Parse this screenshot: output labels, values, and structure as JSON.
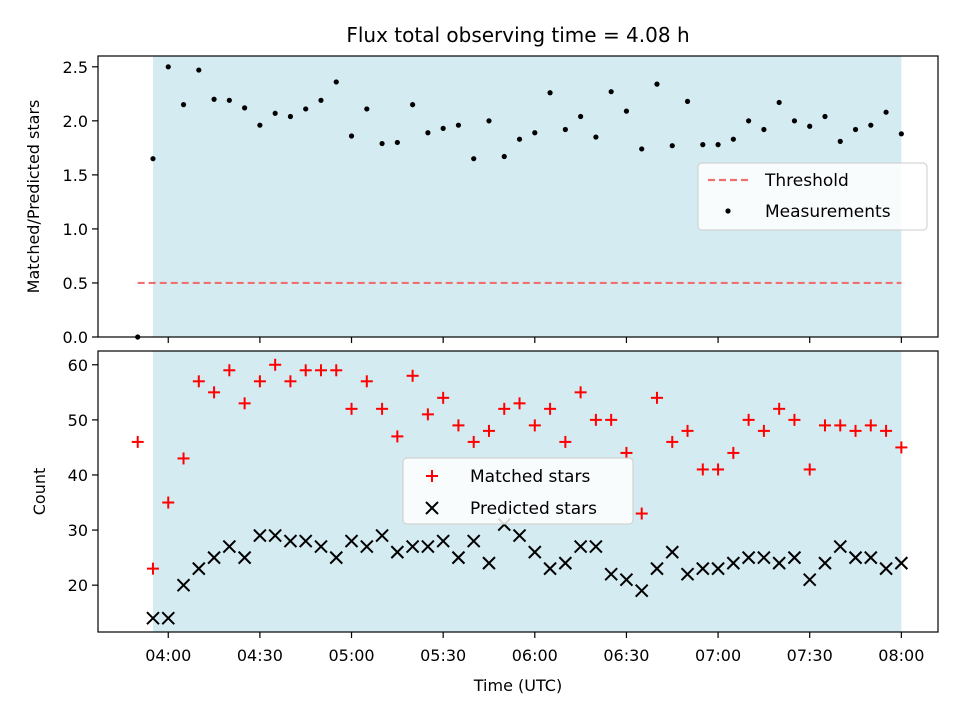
{
  "chart_data": {
    "title": "Flux total observing time = 4.08 h",
    "xlabel": "Time (UTC)",
    "x_ticks": [
      "04:00",
      "04:30",
      "05:00",
      "05:30",
      "06:00",
      "06:30",
      "07:00",
      "07:30",
      "08:00"
    ],
    "x_tick_minutes": [
      240,
      270,
      300,
      330,
      360,
      390,
      420,
      450,
      480
    ],
    "xlim": [
      "03:37",
      "08:12"
    ],
    "shaded_span": [
      "03:55",
      "08:00"
    ],
    "shade_color": "#d4ebf1",
    "panels": [
      {
        "type": "scatter",
        "ylabel": "Matched/Predicted stars",
        "ylim": [
          0,
          2.6
        ],
        "y_ticks": [
          "0.0",
          "0.5",
          "1.0",
          "1.5",
          "2.0",
          "2.5"
        ],
        "y_tick_values": [
          0,
          0.5,
          1.0,
          1.5,
          2.0,
          2.5
        ],
        "legend": "right",
        "threshold": {
          "name": "Threshold",
          "value": 0.5,
          "x_range": [
            "03:50",
            "08:00"
          ],
          "color": "#f07070"
        },
        "series": [
          {
            "name": "Measurements",
            "color": "#000000",
            "marker": "dot",
            "x": [
              "03:50",
              "03:55",
              "04:00",
              "04:05",
              "04:10",
              "04:15",
              "04:20",
              "04:25",
              "04:30",
              "04:35",
              "04:40",
              "04:45",
              "04:50",
              "04:55",
              "05:00",
              "05:05",
              "05:10",
              "05:15",
              "05:20",
              "05:25",
              "05:30",
              "05:35",
              "05:40",
              "05:45",
              "05:50",
              "05:55",
              "06:00",
              "06:05",
              "06:10",
              "06:15",
              "06:20",
              "06:25",
              "06:30",
              "06:35",
              "06:40",
              "06:45",
              "06:50",
              "06:55",
              "07:00",
              "07:05",
              "07:10",
              "07:15",
              "07:20",
              "07:25",
              "07:30",
              "07:35",
              "07:40",
              "07:45",
              "07:50",
              "07:55",
              "08:00"
            ],
            "values": [
              0.0,
              1.65,
              2.5,
              2.15,
              2.47,
              2.2,
              2.19,
              2.12,
              1.96,
              2.07,
              2.04,
              2.11,
              2.19,
              2.36,
              1.86,
              2.11,
              1.79,
              1.8,
              2.15,
              1.89,
              1.93,
              1.96,
              1.65,
              2.0,
              1.67,
              1.83,
              1.89,
              2.26,
              1.92,
              2.04,
              1.85,
              2.27,
              2.09,
              1.74,
              2.34,
              1.77,
              2.18,
              1.78,
              1.78,
              1.83,
              2.0,
              1.92,
              2.17,
              2.0,
              1.95,
              2.04,
              1.81,
              1.92,
              1.96,
              2.08,
              1.88
            ]
          }
        ]
      },
      {
        "type": "scatter",
        "ylabel": "Count",
        "ylim": [
          11.5,
          62.5
        ],
        "y_ticks": [
          "20",
          "30",
          "40",
          "50",
          "60"
        ],
        "y_tick_values": [
          20,
          30,
          40,
          50,
          60
        ],
        "legend": "center",
        "series": [
          {
            "name": "Matched stars",
            "color": "#ff0000",
            "marker": "plus",
            "x": [
              "03:50",
              "03:55",
              "04:00",
              "04:05",
              "04:10",
              "04:15",
              "04:20",
              "04:25",
              "04:30",
              "04:35",
              "04:40",
              "04:45",
              "04:50",
              "04:55",
              "05:00",
              "05:05",
              "05:10",
              "05:15",
              "05:20",
              "05:25",
              "05:30",
              "05:35",
              "05:40",
              "05:45",
              "05:50",
              "05:55",
              "06:00",
              "06:05",
              "06:10",
              "06:15",
              "06:20",
              "06:25",
              "06:30",
              "06:35",
              "06:40",
              "06:45",
              "06:50",
              "06:55",
              "07:00",
              "07:05",
              "07:10",
              "07:15",
              "07:20",
              "07:25",
              "07:30",
              "07:35",
              "07:40",
              "07:45",
              "07:50",
              "07:55",
              "08:00"
            ],
            "values": [
              46,
              23,
              35,
              43,
              57,
              55,
              59,
              53,
              57,
              60,
              57,
              59,
              59,
              59,
              52,
              57,
              52,
              47,
              58,
              51,
              54,
              49,
              46,
              48,
              52,
              53,
              49,
              52,
              46,
              55,
              50,
              50,
              44,
              33,
              54,
              46,
              48,
              41,
              41,
              44,
              50,
              48,
              52,
              50,
              41,
              49,
              49,
              48,
              49,
              48,
              45
            ]
          },
          {
            "name": "Predicted stars",
            "color": "#000000",
            "marker": "x",
            "x": [
              "03:55",
              "04:00",
              "04:05",
              "04:10",
              "04:15",
              "04:20",
              "04:25",
              "04:30",
              "04:35",
              "04:40",
              "04:45",
              "04:50",
              "04:55",
              "05:00",
              "05:05",
              "05:10",
              "05:15",
              "05:20",
              "05:25",
              "05:30",
              "05:35",
              "05:40",
              "05:45",
              "05:50",
              "05:55",
              "06:00",
              "06:05",
              "06:10",
              "06:15",
              "06:20",
              "06:25",
              "06:30",
              "06:35",
              "06:40",
              "06:45",
              "06:50",
              "06:55",
              "07:00",
              "07:05",
              "07:10",
              "07:15",
              "07:20",
              "07:25",
              "07:30",
              "07:35",
              "07:40",
              "07:45",
              "07:50",
              "07:55",
              "08:00"
            ],
            "values": [
              14,
              14,
              20,
              23,
              25,
              27,
              25,
              29,
              29,
              28,
              28,
              27,
              25,
              28,
              27,
              29,
              26,
              27,
              27,
              28,
              25,
              28,
              24,
              31,
              29,
              26,
              23,
              24,
              27,
              27,
              22,
              21,
              19,
              23,
              26,
              22,
              23,
              23,
              24,
              25,
              25,
              24,
              25,
              21,
              24,
              27,
              25,
              25,
              23,
              24
            ]
          }
        ]
      }
    ]
  }
}
